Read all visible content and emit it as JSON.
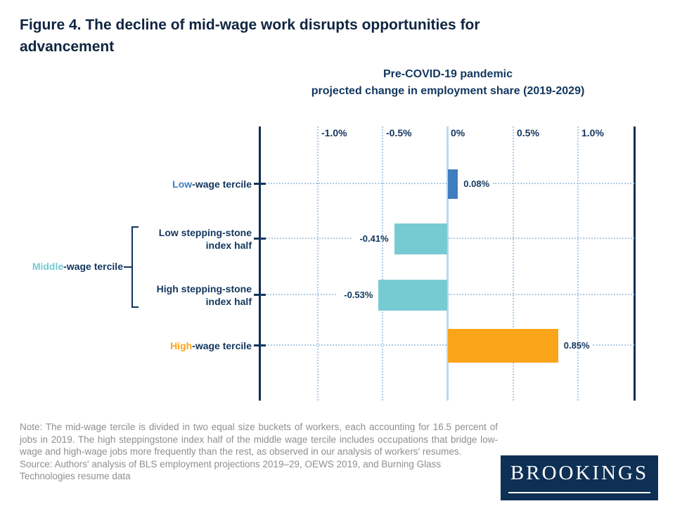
{
  "page_title": "Figure 4. The decline of mid-wage work disrupts opportunities for advancement",
  "chart": {
    "title_line1": "Pre-COVID-19 pandemic",
    "title_line2": "projected change in employment share (2019-2029)"
  },
  "chart_data": {
    "type": "bar",
    "orientation": "horizontal",
    "title": "Pre-COVID-19 pandemic projected change in employment share (2019-2029)",
    "x_ticks": [
      "-1.0%",
      "-0.5%",
      "0%",
      "0.5%",
      "1.0%"
    ],
    "xlim": [
      -1.45,
      1.45
    ],
    "grid": "dotted vertical gridlines at ticks, dotted horizontal leader lines per row",
    "categories": [
      "Low-wage tercile",
      "Low stepping-stone index half",
      "High stepping-stone index half",
      "High-wage tercile"
    ],
    "values": [
      0.08,
      -0.41,
      -0.53,
      0.85
    ],
    "rows": [
      {
        "category": "Low-wage tercile",
        "label_highlight": "Low",
        "label_rest": "-wage tercile",
        "value": 0.08,
        "value_label": "0.08%",
        "bar_color": "#3e7dbf"
      },
      {
        "category": "Low stepping-stone index half",
        "label_line1": "Low stepping-stone",
        "label_line2": "index half",
        "value": -0.41,
        "value_label": "-0.41%",
        "bar_color": "#76cbd3"
      },
      {
        "category": "High stepping-stone index half",
        "label_line1": "High stepping-stone",
        "label_line2": "index half",
        "value": -0.53,
        "value_label": "-0.53%",
        "bar_color": "#76cbd3"
      },
      {
        "category": "High-wage tercile",
        "label_highlight": "High",
        "label_rest": "-wage tercile",
        "value": 0.85,
        "value_label": "0.85%",
        "bar_color": "#faa41a"
      }
    ],
    "group": {
      "label_highlight": "Middle",
      "label_rest": "-wage tercile",
      "grouped_rows": [
        1,
        2
      ]
    },
    "colors": {
      "low_wage_blue": "#3e7dbf",
      "middle_wage_teal": "#76cbd3",
      "high_wage_orange": "#faa41a",
      "axis_navy": "#12365e",
      "grid_light_blue": "#aecde8",
      "zero_line_blue": "#bcd8ee"
    },
    "legend_position": "none"
  },
  "notes": {
    "note": "Note: The mid-wage tercile is divided in two equal size buckets of workers, each accounting for 16.5 percent of jobs in 2019. The high steppingstone index half of the middle wage tercile includes occupations that bridge low-wage and high-wage jobs more frequently than the rest, as observed in our analysis of workers' resumes.",
    "source": "Source: Authors' analysis of BLS employment projections 2019–29, OEWS 2019, and Burning Glass Technologies resume data"
  },
  "logo": {
    "text": "BROOKINGS"
  }
}
